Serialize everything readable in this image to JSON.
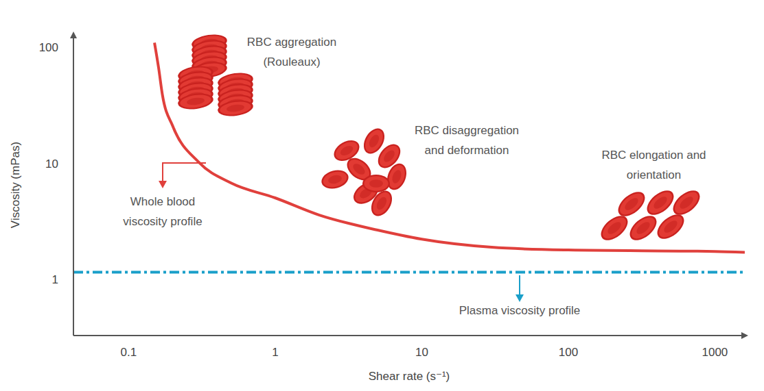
{
  "chart_data": {
    "type": "line",
    "x_label": "Shear rate (s⁻¹)",
    "y_label": "Viscosity (mPas)",
    "log": true,
    "grid": false,
    "xlim": [
      0.042,
      1600
    ],
    "ylim": [
      0.33,
      130
    ],
    "xticks": [
      0.1,
      1,
      10,
      100,
      1000
    ],
    "yticks": [
      1,
      10,
      100
    ],
    "series": [
      {
        "name": "Whole blood viscosity profile",
        "color": "#e0403c",
        "line_style": "solid",
        "marker": "none",
        "x": [
          0.15,
          0.16,
          0.17,
          0.2,
          0.3,
          0.5,
          1,
          2,
          5,
          10,
          30,
          100,
          1000,
          1600
        ],
        "values": [
          110,
          67,
          39,
          21,
          10.3,
          6.8,
          5.06,
          3.6,
          2.67,
          2.23,
          1.9,
          1.8,
          1.75,
          1.72
        ]
      },
      {
        "name": "Plasma viscosity profile",
        "color": "#1a9fc9",
        "line_style": "dashdot",
        "marker": "none",
        "x": [
          0.042,
          1600
        ],
        "values": [
          1.16,
          1.16
        ]
      }
    ],
    "annotations": [
      "RBC aggregation (Rouleaux)",
      "RBC disaggregation and deformation",
      "RBC elongation and orientation"
    ]
  }
}
